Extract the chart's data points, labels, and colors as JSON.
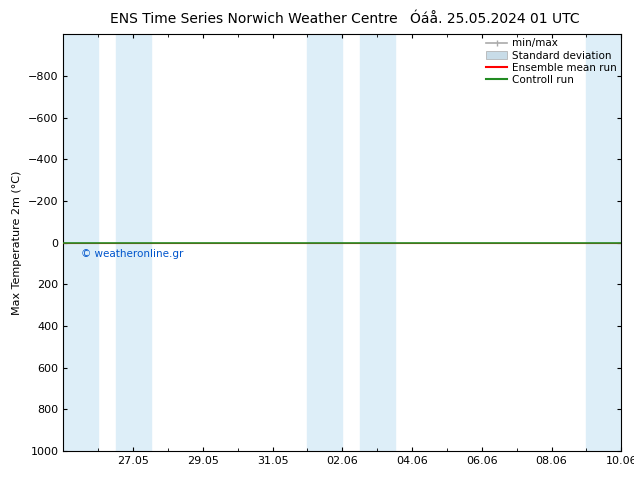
{
  "title_left": "ENS Time Series Norwich Weather Centre",
  "title_right": "Óáå. 25.05.2024 01 UTC",
  "ylabel": "Max Temperature 2m (°C)",
  "ylim_top": -1000,
  "ylim_bottom": 1000,
  "yticks": [
    -800,
    -600,
    -400,
    -200,
    0,
    200,
    400,
    600,
    800,
    1000
  ],
  "xlim": [
    0,
    16
  ],
  "xtick_positions": [
    2,
    4,
    6,
    8,
    10,
    12,
    14,
    16
  ],
  "xtick_labels": [
    "27.05",
    "29.05",
    "31.05",
    "02.06",
    "04.06",
    "06.06",
    "08.06",
    "10.06"
  ],
  "blue_bands": [
    [
      0,
      1.0
    ],
    [
      1.5,
      2.5
    ],
    [
      7.0,
      8.0
    ],
    [
      8.5,
      9.5
    ],
    [
      15.0,
      16.0
    ]
  ],
  "band_color": "#ddeef8",
  "bg_color": "#ffffff",
  "green_line_y": 0,
  "green_line_color": "#228B22",
  "red_line_y": 0,
  "red_line_color": "#ff0000",
  "copyright_text": "© weatheronline.gr",
  "copyright_color": "#0055cc",
  "legend_items": [
    "min/max",
    "Standard deviation",
    "Ensemble mean run",
    "Controll run"
  ],
  "legend_colors_line": [
    "#aaaaaa",
    "#c8dce8",
    "#ff0000",
    "#228B22"
  ],
  "title_fontsize": 10,
  "tick_fontsize": 8,
  "ylabel_fontsize": 8
}
